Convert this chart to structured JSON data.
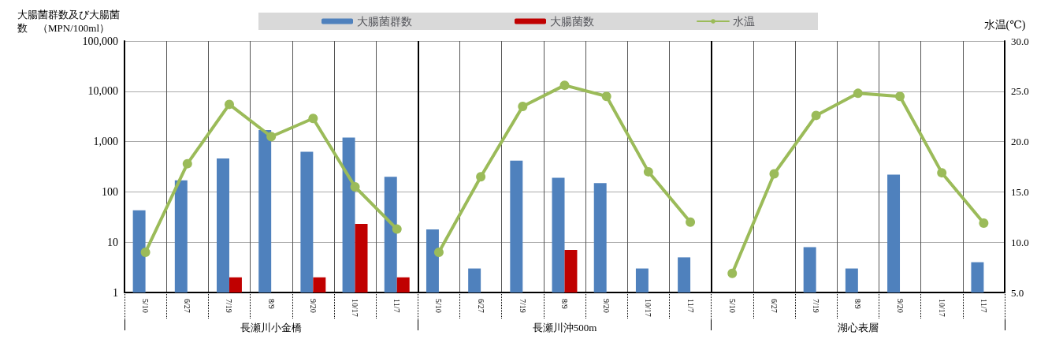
{
  "chart_data": {
    "type": "bar",
    "ylabel": "大腸菌群数及び大腸菌数　（MPN/100ml）",
    "y2label": "水温(℃)",
    "categories": [
      "5/10",
      "6/27",
      "7/19",
      "8/9",
      "9/20",
      "10/17",
      "11/7",
      "5/10",
      "6/27",
      "7/19",
      "8/9",
      "9/20",
      "10/17",
      "11/7",
      "5/10",
      "6/27",
      "7/19",
      "8/9",
      "9/20",
      "10/17",
      "11/7"
    ],
    "annotations": [
      "長瀬川小金橋",
      "長瀬川沖500m",
      "湖心表層"
    ],
    "series": [
      {
        "name": "大腸菌群数",
        "color": "#4f81bd",
        "values": [
          43,
          170,
          460,
          1700,
          630,
          1200,
          200,
          18,
          3,
          420,
          190,
          150,
          3,
          5,
          null,
          null,
          8,
          3,
          220,
          null,
          4
        ]
      },
      {
        "name": "大腸菌数",
        "color": "#c00000",
        "values": [
          null,
          null,
          2,
          null,
          2,
          23,
          2,
          null,
          null,
          null,
          7,
          null,
          null,
          null,
          null,
          null,
          null,
          null,
          null,
          null,
          null
        ]
      },
      {
        "name": "水温",
        "type": "line",
        "axis": "y2",
        "color": "#9bbb59",
        "values": [
          9.0,
          17.8,
          23.7,
          20.5,
          22.3,
          15.5,
          11.3,
          null,
          null,
          null,
          null,
          null,
          null,
          null,
          null,
          null,
          null,
          null,
          null,
          null,
          null
        ]
      },
      {
        "type": "line",
        "axis": "y2",
        "color": "#9bbb59",
        "values": [
          null,
          null,
          null,
          null,
          null,
          null,
          null,
          9.0,
          16.5,
          23.5,
          25.6,
          24.5,
          17.0,
          12.0,
          null,
          null,
          null,
          null,
          null,
          null,
          null
        ]
      },
      {
        "type": "line",
        "axis": "y2",
        "color": "#9bbb59",
        "values": [
          null,
          null,
          null,
          null,
          null,
          null,
          null,
          null,
          null,
          null,
          null,
          null,
          null,
          null,
          6.9,
          16.8,
          22.6,
          24.8,
          24.5,
          16.9,
          11.9
        ]
      }
    ],
    "log": "y",
    "ylim": [
      1,
      100000
    ],
    "yticks": [
      1,
      10,
      100,
      {
        "value": 1000,
        "label": "1,000"
      },
      {
        "value": 10000,
        "label": "10,000"
      },
      {
        "value": 100000,
        "label": "100,000"
      }
    ],
    "y2lim": [
      5,
      30
    ],
    "y2ticks": [
      {
        "value": 5,
        "label": "5.0"
      },
      {
        "value": 10,
        "label": "10.0"
      },
      {
        "value": 15,
        "label": "15.0"
      },
      {
        "value": 20,
        "label": "20.0"
      },
      {
        "value": 25,
        "label": "25.0"
      },
      {
        "value": 30,
        "label": "30.0"
      }
    ],
    "grid": true,
    "legend": "top",
    "marker": "circle",
    "line_style": "solid"
  }
}
